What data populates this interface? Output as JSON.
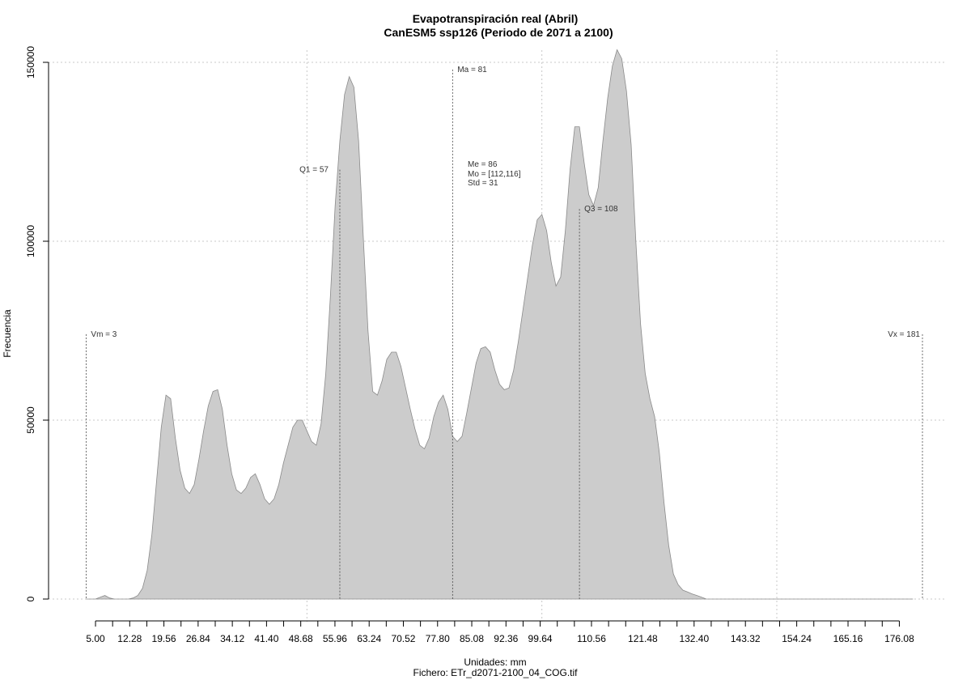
{
  "chart_data": {
    "type": "area",
    "title": "Evapotranspiración real (Abril)",
    "subtitle": "CanESM5 ssp126 (Periodo de 2071 a 2100)",
    "ylabel": "Frecuencia",
    "xlabel": "Unidades: mm",
    "file_label": "Fichero: ETr_d2071-2100_04_COG.tif",
    "xlim": [
      0,
      181
    ],
    "ylim": [
      0,
      150000
    ],
    "grid": true,
    "fill_color": "#cccccc",
    "line_color": "#8a8a8a",
    "x_ticks": [
      5.0,
      12.28,
      19.56,
      26.84,
      34.12,
      41.4,
      48.68,
      55.96,
      63.24,
      70.52,
      77.8,
      85.08,
      92.36,
      99.64,
      110.56,
      121.48,
      132.4,
      143.32,
      154.24,
      165.16,
      176.08
    ],
    "x_tick_labels": [
      "5.00",
      "12.28",
      "19.56",
      "26.84",
      "34.12",
      "41.40",
      "48.68",
      "55.96",
      "63.24",
      "70.52",
      "77.80",
      "85.08",
      "92.36",
      "99.64",
      "110.56",
      "121.48",
      "132.40",
      "143.32",
      "154.24",
      "165.16",
      "176.08"
    ],
    "y_ticks": [
      0,
      50000,
      100000,
      150000
    ],
    "y_tick_labels": [
      "0",
      "50000",
      "100000",
      "150000"
    ],
    "x": [
      3,
      5,
      6,
      7,
      8,
      9,
      10,
      11,
      12,
      13,
      14,
      15,
      16,
      17,
      18,
      19,
      20,
      21,
      22,
      23,
      24,
      25,
      26,
      27,
      28,
      29,
      30,
      31,
      32,
      33,
      34,
      35,
      36,
      37,
      38,
      39,
      40,
      41,
      42,
      43,
      44,
      45,
      46,
      47,
      48,
      49,
      50,
      51,
      52,
      53,
      54,
      55,
      56,
      57,
      58,
      59,
      60,
      61,
      62,
      63,
      64,
      65,
      66,
      67,
      68,
      69,
      70,
      71,
      72,
      73,
      74,
      75,
      76,
      77,
      78,
      79,
      80,
      81,
      82,
      83,
      84,
      85,
      86,
      87,
      88,
      89,
      90,
      91,
      92,
      93,
      94,
      95,
      96,
      97,
      98,
      99,
      100,
      101,
      102,
      103,
      104,
      105,
      106,
      107,
      108,
      109,
      110,
      111,
      112,
      113,
      114,
      115,
      116,
      117,
      118,
      119,
      120,
      121,
      122,
      123,
      124,
      125,
      126,
      127,
      128,
      129,
      130,
      131,
      132,
      133,
      134,
      135,
      136,
      137,
      138,
      139,
      140,
      141,
      142,
      143,
      144,
      145,
      150,
      160,
      170,
      179
    ],
    "y": [
      0,
      0,
      500,
      1000,
      300,
      0,
      0,
      0,
      0,
      300,
      1000,
      3000,
      8000,
      18000,
      33000,
      48000,
      57000,
      56000,
      45000,
      36000,
      31000,
      29500,
      32000,
      39000,
      47000,
      54000,
      58000,
      58500,
      53000,
      43000,
      35000,
      30500,
      29500,
      31000,
      34000,
      35000,
      32000,
      28000,
      26500,
      28000,
      32000,
      38000,
      43000,
      48000,
      50000,
      50000,
      47000,
      44000,
      43000,
      49000,
      63000,
      85000,
      110000,
      128000,
      141000,
      146000,
      143000,
      128000,
      101000,
      75000,
      58000,
      57000,
      61000,
      67000,
      69000,
      69000,
      65000,
      59000,
      53000,
      47500,
      43000,
      42000,
      45000,
      51000,
      55000,
      57000,
      53000,
      45500,
      44000,
      45500,
      52000,
      59000,
      66000,
      70000,
      70500,
      69000,
      64000,
      60000,
      58500,
      59000,
      64000,
      72000,
      81000,
      90000,
      99000,
      106000,
      107500,
      103000,
      94000,
      87500,
      90000,
      103000,
      120000,
      132000,
      132000,
      122000,
      113000,
      110000,
      115000,
      128000,
      140000,
      149000,
      153500,
      151000,
      142000,
      127000,
      100000,
      77000,
      63000,
      56000,
      51000,
      41000,
      27000,
      15000,
      7000,
      4000,
      2500,
      2000,
      1400,
      1000,
      500,
      0,
      0,
      0,
      0,
      0,
      0,
      0,
      0,
      0,
      0,
      0,
      0,
      0,
      0,
      0
    ],
    "annotations": [
      {
        "label": "Vm = 3",
        "x": 3,
        "y_top": 74000
      },
      {
        "label": "Q1 = 57",
        "x": 57,
        "y_top": 120000
      },
      {
        "label": "Ma = 81",
        "x": 81,
        "y_top": 148000
      },
      {
        "label": "Q3 = 108",
        "x": 108,
        "y_top": 109000
      },
      {
        "label": "Vx = 181",
        "x": 181,
        "y_top": 74000
      }
    ],
    "stats": [
      "Me = 86",
      "Mo = [112,116]",
      "Std = 31"
    ]
  }
}
